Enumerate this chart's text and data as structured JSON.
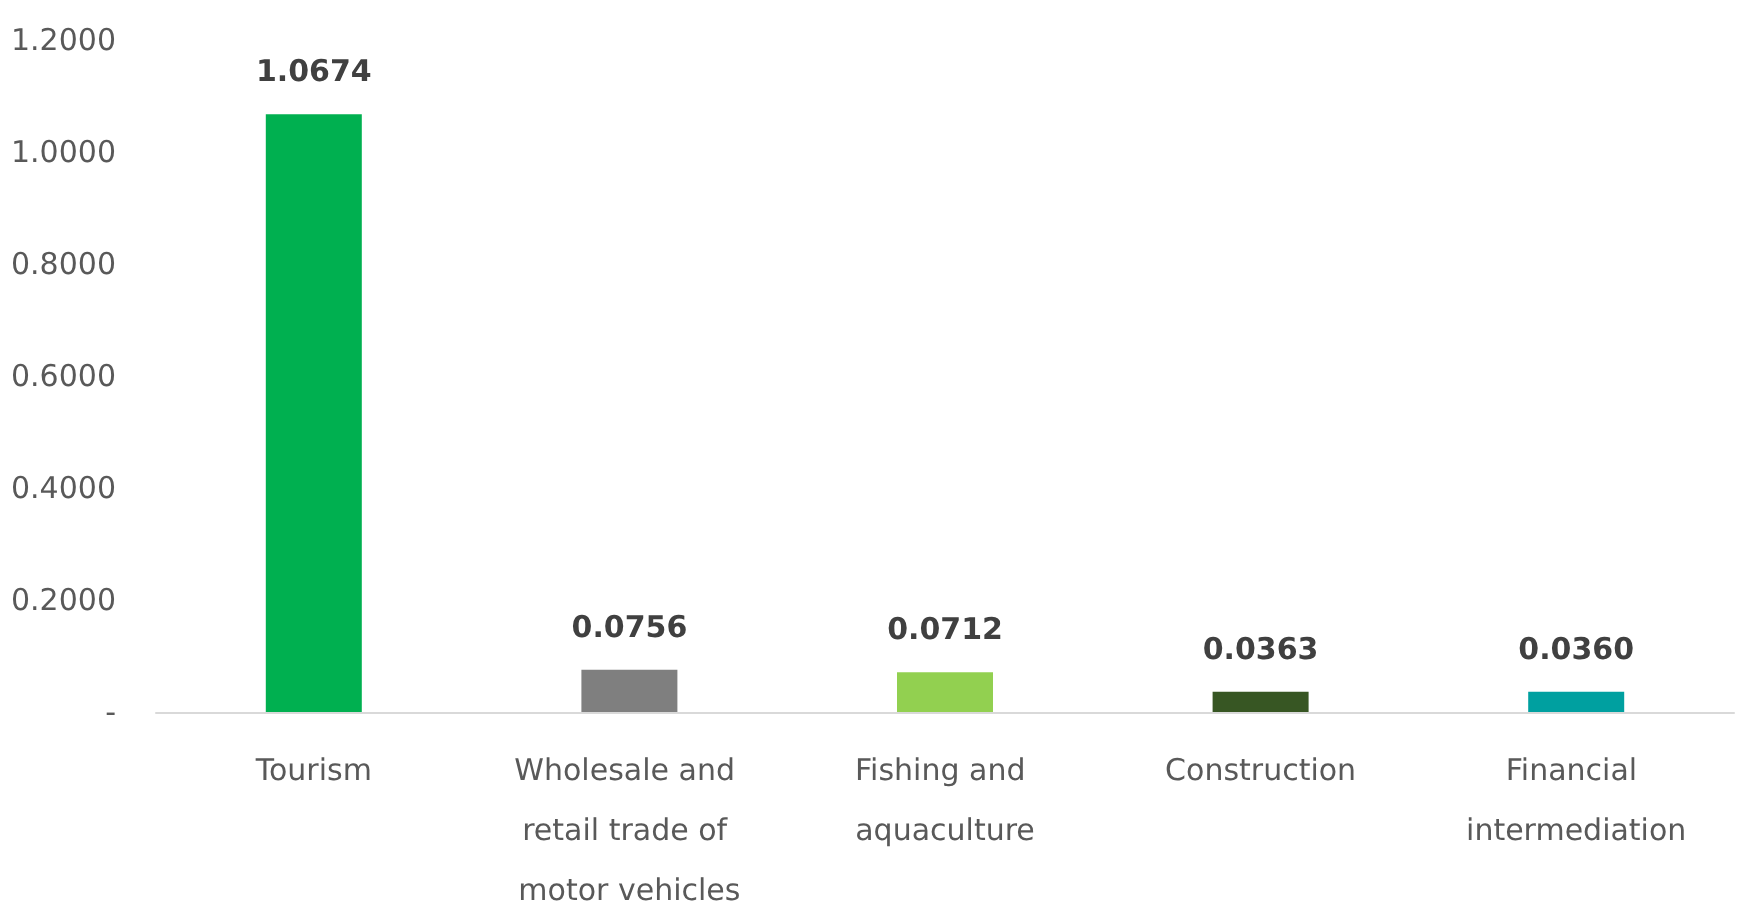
{
  "chart_data": {
    "type": "bar",
    "categories": [
      "Tourism",
      "Wholesale and retail trade of motor vehicles",
      "Fishing and aquaculture",
      "Construction",
      "Financial intermediation"
    ],
    "values": [
      1.0674,
      0.0756,
      0.0712,
      0.0363,
      0.036
    ],
    "colors": [
      "#00b050",
      "#7f7f7f",
      "#92d050",
      "#375623",
      "#00a0a0"
    ],
    "value_labels": [
      "1.0674",
      "0.0756",
      "0.0712",
      "0.0363",
      "0.0360"
    ],
    "ylim": [
      0,
      1.2
    ],
    "yticks": [
      {
        "value": 0,
        "label": "-"
      },
      {
        "value": 0.2,
        "label": "0.2000"
      },
      {
        "value": 0.4,
        "label": "0.4000"
      },
      {
        "value": 0.6,
        "label": "0.6000"
      },
      {
        "value": 0.8,
        "label": "0.8000"
      },
      {
        "value": 1.0,
        "label": "1.0000"
      },
      {
        "value": 1.2,
        "label": "1.2000"
      }
    ],
    "grid": false
  }
}
